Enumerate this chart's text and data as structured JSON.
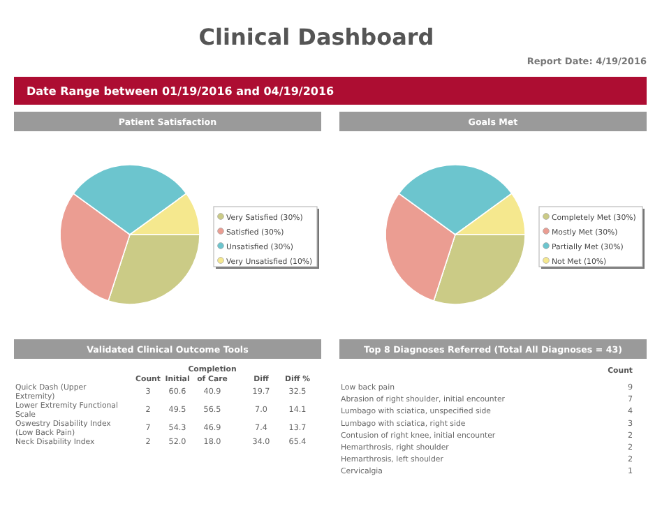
{
  "chart_data": [
    {
      "type": "other",
      "title": "Clinical Dashboard",
      "annotations": [
        "Report Date: 4/19/2016",
        "Date Range between 01/19/2016 and 04/19/2016"
      ]
    },
    {
      "type": "pie",
      "title": "Patient Satisfaction",
      "categories": [
        "Very Satisfied (30%)",
        "Satisfied (30%)",
        "Unsatisfied (30%)",
        "Very Unsatisfied (10%)"
      ],
      "values": [
        30,
        30,
        30,
        10
      ],
      "colors": [
        "#cbcb86",
        "#eb9d92",
        "#6cc5ce",
        "#f5e88e"
      ],
      "legend": "right"
    },
    {
      "type": "pie",
      "title": "Goals Met",
      "categories": [
        "Completely Met (30%)",
        "Mostly Met (30%)",
        "Partially Met (30%)",
        "Not Met (10%)"
      ],
      "values": [
        30,
        30,
        30,
        10
      ],
      "colors": [
        "#cbcb86",
        "#eb9d92",
        "#6cc5ce",
        "#f5e88e"
      ],
      "legend": "right"
    },
    {
      "type": "other",
      "title": "Validated Clinical Outcome Tools",
      "data_labels": true,
      "categories": [
        "Quick Dash (Upper Extremity)",
        "Lower Extremity Functional Scale",
        "Oswestry Disability Index (Low Back Pain)",
        "Neck Disability Index"
      ],
      "series": [
        {
          "name": "Count",
          "values": [
            3,
            2,
            7,
            2
          ]
        },
        {
          "name": "Initial",
          "values": [
            60.6,
            49.5,
            54.3,
            52.0
          ],
          "value_labels": [
            "60.6",
            "49.5",
            "54.3",
            "52.0"
          ]
        },
        {
          "name": "Completion of Care",
          "values": [
            40.9,
            56.5,
            46.9,
            18.0
          ],
          "value_labels": [
            "40.9",
            "56.5",
            "46.9",
            "18.0"
          ]
        },
        {
          "name": "Diff",
          "values": [
            19.7,
            7.0,
            7.4,
            34.0
          ],
          "value_labels": [
            "19.7",
            "7.0",
            "7.4",
            "34.0"
          ]
        },
        {
          "name": "Diff %",
          "values": [
            32.5,
            14.1,
            13.7,
            65.4
          ]
        }
      ]
    },
    {
      "type": "other",
      "title": "Top 8 Diagnoses Referred (Total All Diagnoses = 43)",
      "data_labels": true,
      "categories": [
        "Low back pain",
        "Abrasion of right shoulder, initial encounter",
        "Lumbago with sciatica, unspecified side",
        "Lumbago with sciatica, right side",
        "Contusion of right knee, initial encounter",
        "Hemarthrosis, right shoulder",
        "Hemarthrosis, left shoulder",
        "Cervicalgia"
      ],
      "series": [
        {
          "name": "Count",
          "values": [
            9,
            7,
            4,
            3,
            2,
            2,
            2,
            1
          ]
        }
      ]
    }
  ]
}
